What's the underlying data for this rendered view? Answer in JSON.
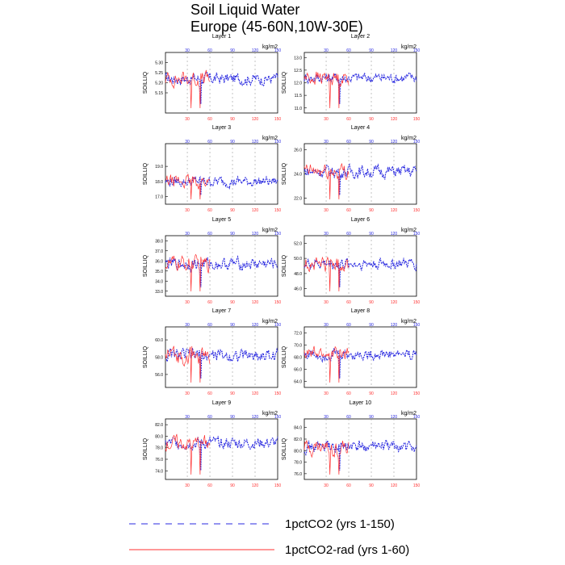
{
  "figure": {
    "title_line1": "Soil Liquid Water",
    "title_line2": "Europe (45-60N,10W-30E)",
    "legend": [
      {
        "label": "1pctCO2 (yrs 1-150)",
        "color": "#2a2ae0",
        "dash": true
      },
      {
        "label": "1pctCO2-rad (yrs 1-60)",
        "color": "#ff3030",
        "dash": false
      }
    ]
  },
  "chart_data": [
    {
      "type": "line",
      "title": "Layer 1",
      "ylabel": "SOILLIQ",
      "unit": "kg/m2",
      "ylim": [
        5.05,
        5.35
      ],
      "yticks": [
        "5.30",
        "5.25",
        "5.20",
        "5.15"
      ],
      "x_bottom_ticks": [
        "30",
        "60",
        "90",
        "120",
        "150"
      ],
      "x_top_ticks": [
        "30",
        "60",
        "90",
        "120",
        "150"
      ],
      "x": [
        1,
        150
      ],
      "series": [
        {
          "values_mean": 5.22,
          "amp": 0.035,
          "years": [
            1,
            150
          ]
        },
        {
          "values_mean": 5.22,
          "amp": 0.045,
          "years": [
            1,
            60
          ]
        }
      ]
    },
    {
      "type": "line",
      "title": "Layer 2",
      "ylabel": "SOILLIQ",
      "unit": "kg/m2",
      "ylim": [
        10.8,
        13.2
      ],
      "yticks": [
        "13.0",
        "12.5",
        "12.0",
        "11.5",
        "11.0"
      ],
      "x_bottom_ticks": [
        "30",
        "60",
        "90",
        "120",
        "150"
      ],
      "x_top_ticks": [
        "30",
        "60",
        "90",
        "120",
        "150"
      ],
      "x": [
        1,
        150
      ],
      "series": [
        {
          "values_mean": 12.2,
          "amp": 0.25,
          "years": [
            1,
            150
          ]
        },
        {
          "values_mean": 12.2,
          "amp": 0.35,
          "years": [
            1,
            60
          ]
        }
      ]
    },
    {
      "type": "line",
      "title": "Layer 3",
      "ylabel": "SOILLIQ",
      "unit": "kg/m2",
      "ylim": [
        16.5,
        20.5
      ],
      "yticks": [
        "19.0",
        "18.0",
        "17.0"
      ],
      "x_bottom_ticks": [
        "30",
        "60",
        "90",
        "120",
        "150"
      ],
      "x_top_ticks": [
        "30",
        "60",
        "90",
        "120",
        "150"
      ],
      "x": [
        1,
        150
      ],
      "series": [
        {
          "values_mean": 18.0,
          "amp": 0.4,
          "years": [
            1,
            150
          ]
        },
        {
          "values_mean": 18.0,
          "amp": 0.5,
          "years": [
            1,
            60
          ]
        }
      ]
    },
    {
      "type": "line",
      "title": "Layer 4",
      "ylabel": "SOILLIQ",
      "unit": "kg/m2",
      "ylim": [
        21.5,
        26.5
      ],
      "yticks": [
        "26.0",
        "24.0",
        "22.0"
      ],
      "x_bottom_ticks": [
        "30",
        "60",
        "90",
        "120",
        "150"
      ],
      "x_top_ticks": [
        "30",
        "60",
        "90",
        "120",
        "150"
      ],
      "x": [
        1,
        150
      ],
      "series": [
        {
          "values_mean": 24.2,
          "amp": 0.6,
          "years": [
            1,
            150
          ]
        },
        {
          "values_mean": 24.2,
          "amp": 0.8,
          "years": [
            1,
            60
          ]
        }
      ]
    },
    {
      "type": "line",
      "title": "Layer 5",
      "ylabel": "SOILLIQ",
      "unit": "kg/m2",
      "ylim": [
        32.5,
        38.5
      ],
      "yticks": [
        "38.0",
        "37.0",
        "36.0",
        "35.0",
        "34.0",
        "33.0"
      ],
      "x_bottom_ticks": [
        "30",
        "60",
        "90",
        "120",
        "150"
      ],
      "x_top_ticks": [
        "30",
        "60",
        "90",
        "120",
        "150"
      ],
      "x": [
        1,
        150
      ],
      "series": [
        {
          "values_mean": 35.7,
          "amp": 0.7,
          "years": [
            1,
            150
          ]
        },
        {
          "values_mean": 35.7,
          "amp": 0.9,
          "years": [
            1,
            60
          ]
        }
      ]
    },
    {
      "type": "line",
      "title": "Layer 6",
      "ylabel": "SOILLIQ",
      "unit": "kg/m2",
      "ylim": [
        45.0,
        53.0
      ],
      "yticks": [
        "52.0",
        "50.0",
        "48.0",
        "46.0"
      ],
      "x_bottom_ticks": [
        "30",
        "60",
        "90",
        "120",
        "150"
      ],
      "x_top_ticks": [
        "30",
        "60",
        "90",
        "120",
        "150"
      ],
      "x": [
        1,
        150
      ],
      "series": [
        {
          "values_mean": 49.3,
          "amp": 0.9,
          "years": [
            1,
            150
          ]
        },
        {
          "values_mean": 49.3,
          "amp": 1.2,
          "years": [
            1,
            60
          ]
        }
      ]
    },
    {
      "type": "line",
      "title": "Layer 7",
      "ylabel": "SOILLIQ",
      "unit": "kg/m2",
      "ylim": [
        54.5,
        61.5
      ],
      "yticks": [
        "60.0",
        "58.0",
        "56.0"
      ],
      "x_bottom_ticks": [
        "30",
        "60",
        "90",
        "120",
        "150"
      ],
      "x_top_ticks": [
        "30",
        "60",
        "90",
        "120",
        "150"
      ],
      "x": [
        1,
        150
      ],
      "series": [
        {
          "values_mean": 58.2,
          "amp": 0.9,
          "years": [
            1,
            150
          ]
        },
        {
          "values_mean": 58.2,
          "amp": 1.2,
          "years": [
            1,
            60
          ]
        }
      ]
    },
    {
      "type": "line",
      "title": "Layer 8",
      "ylabel": "SOILLIQ",
      "unit": "kg/m2",
      "ylim": [
        63.0,
        73.0
      ],
      "yticks": [
        "72.0",
        "70.0",
        "68.0",
        "66.0",
        "64.0"
      ],
      "x_bottom_ticks": [
        "30",
        "60",
        "90",
        "120",
        "150"
      ],
      "x_top_ticks": [
        "30",
        "60",
        "90",
        "120",
        "150"
      ],
      "x": [
        1,
        150
      ],
      "series": [
        {
          "values_mean": 68.5,
          "amp": 1.1,
          "years": [
            1,
            150
          ]
        },
        {
          "values_mean": 68.5,
          "amp": 1.4,
          "years": [
            1,
            60
          ]
        }
      ]
    },
    {
      "type": "line",
      "title": "Layer 9",
      "ylabel": "SOILLIQ",
      "unit": "kg/m2",
      "ylim": [
        72.5,
        83.0
      ],
      "yticks": [
        "82.0",
        "80.0",
        "78.0",
        "76.0",
        "74.0"
      ],
      "x_bottom_ticks": [
        "30",
        "60",
        "90",
        "120",
        "150"
      ],
      "x_top_ticks": [
        "30",
        "60",
        "90",
        "120",
        "150"
      ],
      "x": [
        1,
        150
      ],
      "series": [
        {
          "values_mean": 78.8,
          "amp": 1.2,
          "years": [
            1,
            150
          ]
        },
        {
          "values_mean": 78.8,
          "amp": 1.6,
          "years": [
            1,
            60
          ]
        }
      ]
    },
    {
      "type": "line",
      "title": "Layer 10",
      "ylabel": "SOILLIQ",
      "unit": "kg/m2",
      "ylim": [
        75.0,
        85.5
      ],
      "yticks": [
        "84.0",
        "82.0",
        "80.0",
        "78.0",
        "76.0"
      ],
      "x_bottom_ticks": [
        "30",
        "60",
        "90",
        "120",
        "150"
      ],
      "x_top_ticks": [
        "30",
        "60",
        "90",
        "120",
        "150"
      ],
      "x": [
        1,
        150
      ],
      "series": [
        {
          "values_mean": 80.6,
          "amp": 1.2,
          "years": [
            1,
            150
          ]
        },
        {
          "values_mean": 80.6,
          "amp": 1.6,
          "years": [
            1,
            60
          ]
        }
      ]
    }
  ]
}
